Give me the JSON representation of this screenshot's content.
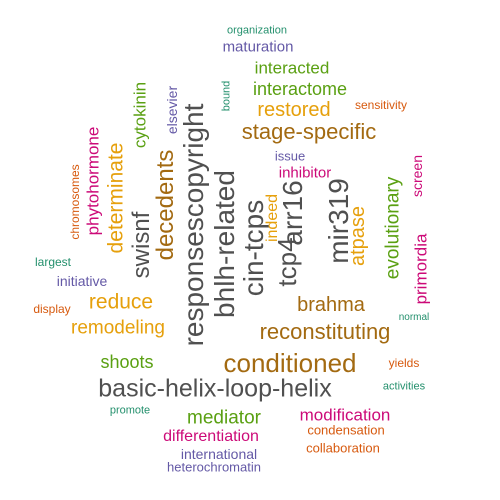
{
  "colors": {
    "gray": "#505050",
    "brown": "#a36a11",
    "gold": "#e6a00c",
    "green": "#5aa012",
    "magenta": "#cc0a78",
    "purple": "#6459a6",
    "orange": "#d75a0f",
    "teal": "#24906d"
  },
  "words": [
    {
      "id": "w0",
      "text": "basic-helix-loop-helix",
      "color": "gray"
    },
    {
      "id": "w1",
      "text": "conditioned",
      "color": "brown"
    },
    {
      "id": "w2",
      "text": "reconstituting",
      "color": "brown"
    },
    {
      "id": "w3",
      "text": "stage-specific",
      "color": "brown"
    },
    {
      "id": "w4",
      "text": "brahma",
      "color": "brown"
    },
    {
      "id": "w5",
      "text": "reduce",
      "color": "gold"
    },
    {
      "id": "w6",
      "text": "remodeling",
      "color": "gold"
    },
    {
      "id": "w7",
      "text": "restored",
      "color": "gold"
    },
    {
      "id": "w8",
      "text": "shoots",
      "color": "green"
    },
    {
      "id": "w9",
      "text": "mediator",
      "color": "green"
    },
    {
      "id": "w10",
      "text": "interactome",
      "color": "green"
    },
    {
      "id": "w11",
      "text": "interacted",
      "color": "green"
    },
    {
      "id": "w12",
      "text": "maturation",
      "color": "purple"
    },
    {
      "id": "w13",
      "text": "organization",
      "color": "teal"
    },
    {
      "id": "w14",
      "text": "sensitivity",
      "color": "orange"
    },
    {
      "id": "w15",
      "text": "issue",
      "color": "purple"
    },
    {
      "id": "w16",
      "text": "inhibitor",
      "color": "magenta"
    },
    {
      "id": "w17",
      "text": "modification",
      "color": "magenta"
    },
    {
      "id": "w18",
      "text": "differentiation",
      "color": "magenta"
    },
    {
      "id": "w19",
      "text": "condensation",
      "color": "orange"
    },
    {
      "id": "w20",
      "text": "collaboration",
      "color": "orange"
    },
    {
      "id": "w21",
      "text": "international",
      "color": "purple"
    },
    {
      "id": "w22",
      "text": "heterochromatin",
      "color": "purple"
    },
    {
      "id": "w23",
      "text": "promote",
      "color": "teal"
    },
    {
      "id": "w24",
      "text": "activities",
      "color": "teal"
    },
    {
      "id": "w25",
      "text": "yields",
      "color": "orange"
    },
    {
      "id": "w26",
      "text": "normal",
      "color": "teal"
    },
    {
      "id": "w27",
      "text": "initiative",
      "color": "purple"
    },
    {
      "id": "w28",
      "text": "largest",
      "color": "teal"
    },
    {
      "id": "w29",
      "text": "display",
      "color": "orange"
    },
    {
      "id": "w30",
      "text": "responsescopyright",
      "color": "gray"
    },
    {
      "id": "w31",
      "text": "bhlh-related",
      "color": "gray"
    },
    {
      "id": "w32",
      "text": "cin-tcps",
      "color": "gray"
    },
    {
      "id": "w33",
      "text": "tcp4",
      "color": "gray"
    },
    {
      "id": "w34",
      "text": "arr16",
      "color": "gray"
    },
    {
      "id": "w35",
      "text": "mir319",
      "color": "gray"
    },
    {
      "id": "w36",
      "text": "decedents",
      "color": "brown"
    },
    {
      "id": "w37",
      "text": "swisnf",
      "color": "gray"
    },
    {
      "id": "w38",
      "text": "determinate",
      "color": "gold"
    },
    {
      "id": "w39",
      "text": "phytohormone",
      "color": "magenta"
    },
    {
      "id": "w40",
      "text": "chromosomes",
      "color": "orange"
    },
    {
      "id": "w41",
      "text": "cytokinin",
      "color": "green"
    },
    {
      "id": "w42",
      "text": "elsevier",
      "color": "purple"
    },
    {
      "id": "w43",
      "text": "bound",
      "color": "teal"
    },
    {
      "id": "w44",
      "text": "indeed",
      "color": "gold"
    },
    {
      "id": "w45",
      "text": "atpase",
      "color": "gold"
    },
    {
      "id": "w46",
      "text": "evolutionary",
      "color": "green"
    },
    {
      "id": "w47",
      "text": "primordia",
      "color": "magenta"
    },
    {
      "id": "w48",
      "text": "screen",
      "color": "magenta"
    }
  ]
}
